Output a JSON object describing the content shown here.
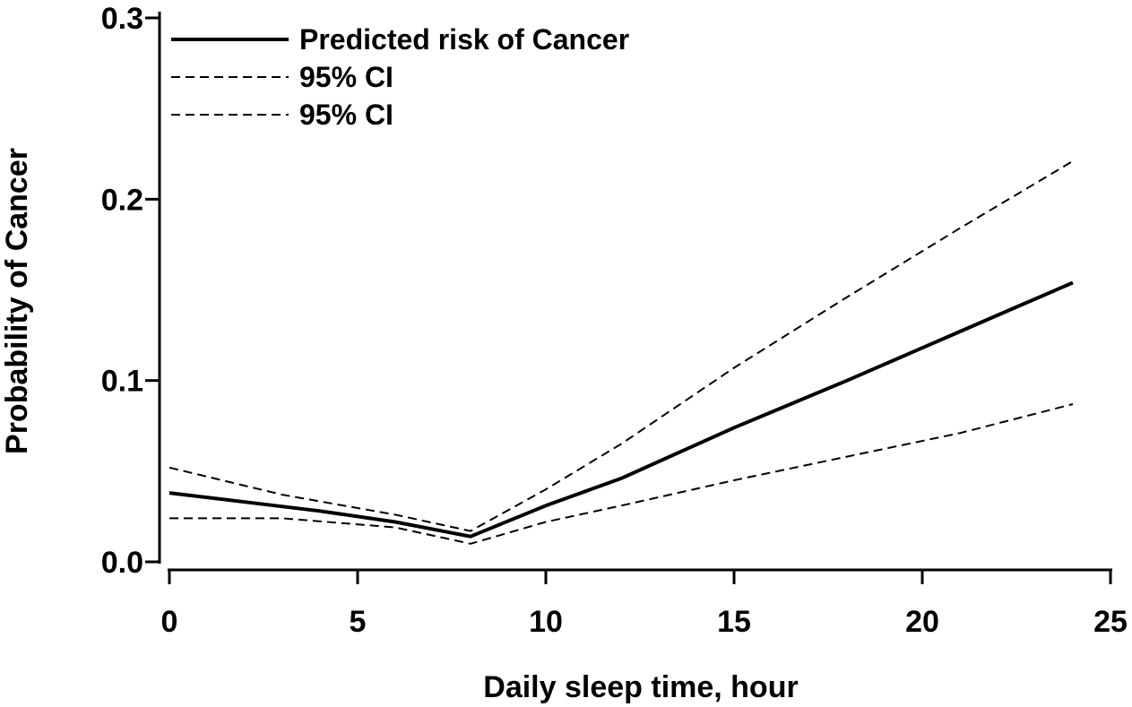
{
  "chart_data": {
    "type": "line",
    "title": "",
    "xlabel": "Daily sleep time, hour",
    "ylabel": "Probability of Cancer",
    "xlim": [
      0,
      25
    ],
    "ylim": [
      0,
      0.3
    ],
    "xticks": [
      0,
      5,
      10,
      15,
      20,
      25
    ],
    "xtick_labels": [
      "0",
      "5",
      "10",
      "15",
      "20",
      "25"
    ],
    "yticks": [
      0,
      0.1,
      0.2,
      0.3
    ],
    "ytick_labels": [
      "0.0",
      "0.1",
      "0.2",
      "0.3"
    ],
    "grid": false,
    "legend_position": "top-left",
    "series": [
      {
        "name": "Predicted risk of Cancer",
        "style": "solid",
        "color": "#000000",
        "x": [
          0,
          2,
          4,
          6,
          8,
          10,
          12,
          15,
          18,
          21,
          24
        ],
        "y": [
          0.038,
          0.033,
          0.028,
          0.022,
          0.014,
          0.031,
          0.046,
          0.074,
          0.1,
          0.127,
          0.154
        ]
      },
      {
        "name": "95% CI",
        "style": "dashed",
        "color": "#000000",
        "x": [
          0,
          3,
          6,
          8,
          10,
          12,
          15,
          18,
          21,
          24
        ],
        "y": [
          0.052,
          0.037,
          0.026,
          0.017,
          0.04,
          0.065,
          0.107,
          0.146,
          0.184,
          0.221
        ]
      },
      {
        "name": "95% CI",
        "style": "dashed",
        "color": "#000000",
        "x": [
          0,
          3,
          6,
          8,
          10,
          12,
          15,
          18,
          21,
          24
        ],
        "y": [
          0.024,
          0.024,
          0.019,
          0.01,
          0.022,
          0.031,
          0.045,
          0.058,
          0.071,
          0.087
        ]
      }
    ]
  }
}
